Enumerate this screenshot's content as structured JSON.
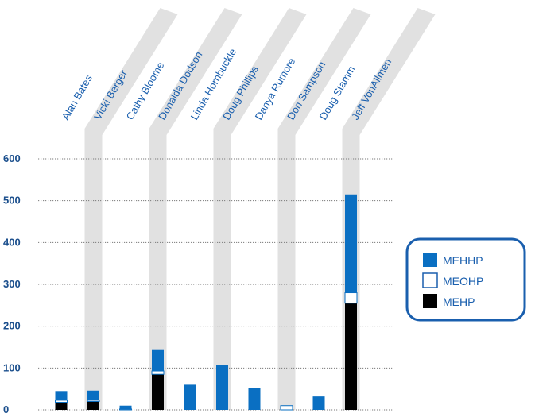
{
  "chart_data": {
    "type": "bar",
    "stacked": true,
    "categories": [
      "Alan Bates",
      "Vicki Berger",
      "Cathy Bloome",
      "Donalda Dodson",
      "Linda Hornbuckle",
      "Doug Phillips",
      "Danya Rumore",
      "Don Sampson",
      "Doug Stamm",
      "Jeff VonAllmen"
    ],
    "series": [
      {
        "name": "MEHP",
        "color": "#000000",
        "values": [
          18,
          20,
          0,
          85,
          0,
          0,
          0,
          0,
          0,
          255
        ]
      },
      {
        "name": "MEOHP",
        "color": "#ffffff",
        "values": [
          5,
          3,
          2,
          8,
          0,
          0,
          0,
          10,
          0,
          25
        ]
      },
      {
        "name": "MEHHP",
        "color": "#0a6fc2",
        "values": [
          22,
          23,
          8,
          50,
          60,
          107,
          53,
          0,
          32,
          235
        ]
      }
    ],
    "yticks": [
      0,
      100,
      200,
      300,
      400,
      500,
      600
    ],
    "ylim": [
      0,
      600
    ],
    "grid": "dotted horizontal",
    "legend": {
      "position": "right",
      "entries": [
        "MEHHP",
        "MEOHP",
        "MEHP"
      ]
    }
  }
}
